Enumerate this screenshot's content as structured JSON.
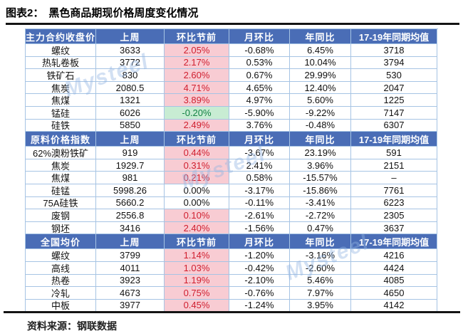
{
  "page": {
    "figure_label": "图表2：",
    "title": "黑色商品期现价格周度变化情况",
    "source": "资料来源：钢联数据",
    "watermark": "Mysteel"
  },
  "colors": {
    "header_bg": "#4a6db6",
    "header_text": "#ffffff",
    "grid_border": "#a6c4e4",
    "up_bg": "#f8ccd3",
    "up_text": "#d01f2f",
    "down_bg": "#c8ecd3",
    "down_text": "#128243",
    "rule": "#141414",
    "watermark": "rgba(145,180,225,0.55)"
  },
  "table": {
    "sections": [
      {
        "header": [
          "主力合约收盘价",
          "上周",
          "环比节前",
          "月环比",
          "年同比",
          "17-19年同期均值"
        ],
        "rows": [
          [
            "螺纹",
            "3633",
            "2.05%",
            "-0.68%",
            "6.45%",
            "3718"
          ],
          [
            "热轧卷板",
            "3772",
            "2.17%",
            "0.53%",
            "10.04%",
            "3794"
          ],
          [
            "铁矿石",
            "830",
            "2.60%",
            "0.67%",
            "29.99%",
            "530"
          ],
          [
            "焦炭",
            "2080.5",
            "4.71%",
            "4.65%",
            "12.40%",
            "2047"
          ],
          [
            "焦煤",
            "1321",
            "3.89%",
            "4.97%",
            "5.60%",
            "1225"
          ],
          [
            "锰硅",
            "6026",
            "-0.20%",
            "-5.90%",
            "-9.22%",
            "7147"
          ],
          [
            "硅铁",
            "5850",
            "2.49%",
            "3.76%",
            "-0.48%",
            "6307"
          ]
        ]
      },
      {
        "header": [
          "原料价格指数",
          "上周",
          "环比节前",
          "月环比",
          "年同比",
          "17-19年同期均值"
        ],
        "rows": [
          [
            "62%澳粉铁矿",
            "919",
            "0.44%",
            "-3.67%",
            "23.19%",
            "591"
          ],
          [
            "焦炭",
            "1929.7",
            "0.31%",
            "2.41%",
            "3.96%",
            "2151"
          ],
          [
            "焦煤",
            "981",
            "0.21%",
            "0.58%",
            "-15.57%",
            "–"
          ],
          [
            "硅锰",
            "5998.26",
            "0.00%",
            "-3.17%",
            "-15.86%",
            "7761"
          ],
          [
            "75A硅铁",
            "5660.2",
            "0.00%",
            "-0.11%",
            "-3.41%",
            "6223"
          ],
          [
            "废钢",
            "2556.8",
            "0.10%",
            "-2.61%",
            "-2.72%",
            "2305"
          ],
          [
            "钢坯",
            "3416",
            "2.40%",
            "-1.56%",
            "0.47%",
            "3637"
          ]
        ]
      },
      {
        "header": [
          "全国均价",
          "上周",
          "环比节前",
          "月环比",
          "年同比",
          "17-19年同期均值"
        ],
        "rows": [
          [
            "螺纹",
            "3799",
            "1.14%",
            "-1.20%",
            "-3.16%",
            "4216"
          ],
          [
            "高线",
            "4011",
            "1.03%",
            "-0.42%",
            "-2.60%",
            "4424"
          ],
          [
            "热卷",
            "3923",
            "1.19%",
            "-2.10%",
            "5.46%",
            "4085"
          ],
          [
            "冷轧",
            "4673",
            "0.75%",
            "-0.76%",
            "7.97%",
            "4650"
          ],
          [
            "中板",
            "3977",
            "0.45%",
            "-1.24%",
            "3.95%",
            "4142"
          ]
        ]
      }
    ]
  }
}
